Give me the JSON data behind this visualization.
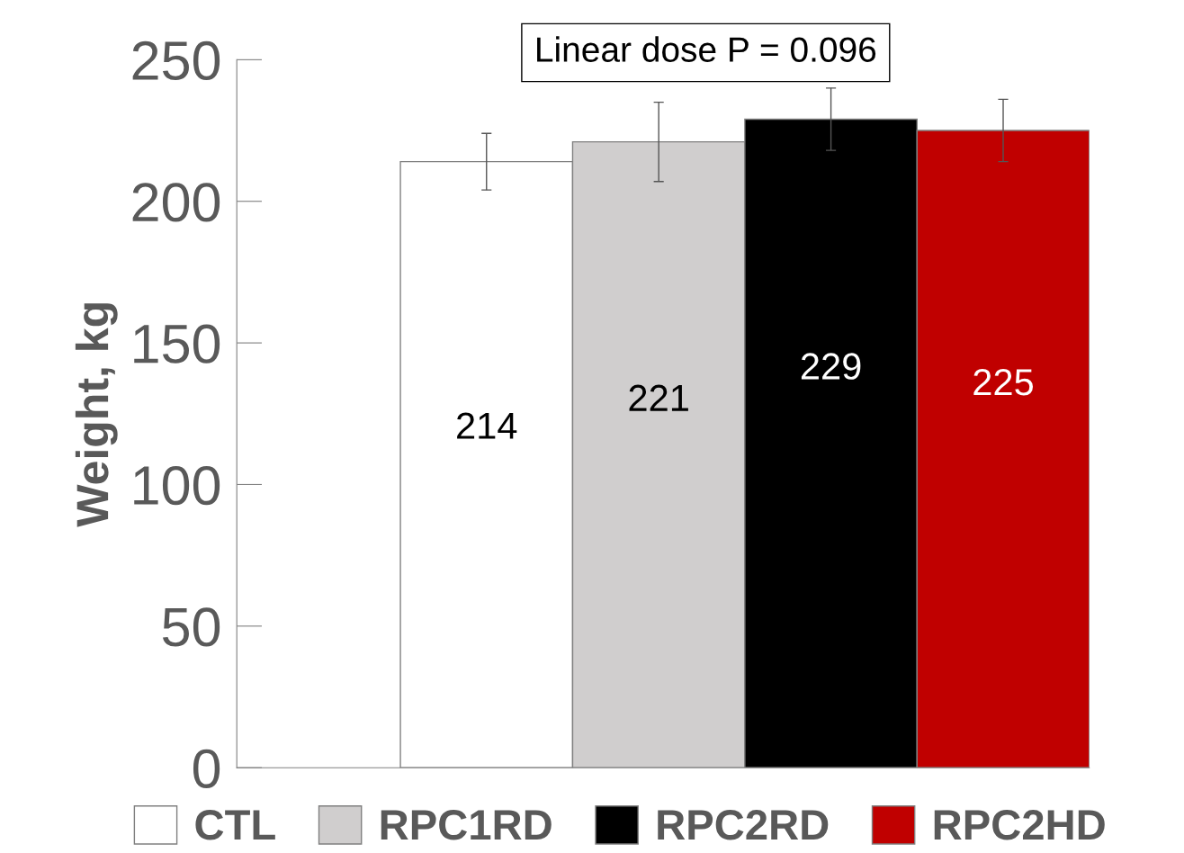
{
  "chart_data": {
    "type": "bar",
    "ylabel": "Weight, kg",
    "categories": [
      null
    ],
    "series": [
      {
        "name": "CTL",
        "color": "#ffffff",
        "values": [
          214
        ],
        "errors": [
          10
        ]
      },
      {
        "name": "RPC1RD",
        "color": "#d0cece",
        "values": [
          221
        ],
        "errors": [
          14
        ]
      },
      {
        "name": "RPC2RD",
        "color": "#000000",
        "values": [
          229
        ],
        "errors": [
          11
        ]
      },
      {
        "name": "RPC2HD",
        "color": "#c00000",
        "values": [
          225
        ],
        "errors": [
          11
        ]
      }
    ],
    "ylim": [
      0,
      250
    ],
    "yticks": [
      0,
      50,
      100,
      150,
      200,
      250
    ],
    "data_labels": true,
    "legend": "bottom",
    "grid": false,
    "annotations": [
      "Linear dose P = 0.096"
    ]
  }
}
